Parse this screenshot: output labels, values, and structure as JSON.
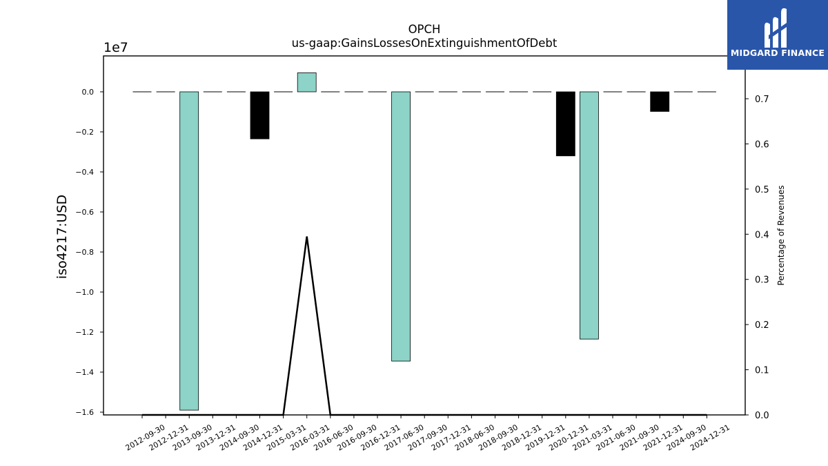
{
  "brand": {
    "name": "MIDGARD FINANCE",
    "logo_icon": "midgard-m-logo-icon",
    "background": "#2a56aa"
  },
  "chart_data": {
    "type": "bar",
    "title": "OPCH",
    "subtitle": "us-gaap:GainsLossesOnExtinguishmentOfDebt",
    "ylabel": "iso4217:USD",
    "y2label": "Percentage of Revenues",
    "y_offset_label": "1e7",
    "ylim": [
      -1.6,
      0.1
    ],
    "yticks": [
      "0.0",
      "−0.2",
      "−0.4",
      "−0.6",
      "−0.8",
      "−1.0",
      "−1.2",
      "−1.4",
      "−1.6"
    ],
    "y2lim": [
      0.0,
      0.7
    ],
    "y2ticks": [
      "0.0",
      "0.1",
      "0.2",
      "0.3",
      "0.4",
      "0.5",
      "0.6",
      "0.7"
    ],
    "categories": [
      "2012-09-30",
      "2012-12-31",
      "2013-09-30",
      "2013-12-31",
      "2014-09-30",
      "2014-12-31",
      "2015-03-31",
      "2016-03-31",
      "2016-06-30",
      "2016-09-30",
      "2016-12-31",
      "2017-06-30",
      "2017-09-30",
      "2017-12-31",
      "2018-06-30",
      "2018-09-30",
      "2018-12-31",
      "2019-12-31",
      "2020-12-31",
      "2021-03-31",
      "2021-06-30",
      "2021-09-30",
      "2021-12-31",
      "2024-09-30",
      "2024-12-31"
    ],
    "series": [
      {
        "values": [
          0,
          0,
          -1.59,
          0,
          0,
          -0.235,
          0,
          0.095,
          0,
          0,
          0,
          -1.345,
          0,
          0,
          0,
          0,
          0,
          0,
          -0.32,
          -1.235,
          0,
          0,
          -0.098,
          0,
          0
        ],
        "colors": {
          "positive": "#8dd3c7",
          "negative": "#000000"
        },
        "axis": "left",
        "type": "bar"
      },
      {
        "values": [
          0,
          0,
          0,
          0,
          0,
          0,
          0,
          0.395,
          0,
          0,
          0,
          0,
          0,
          0,
          0,
          0,
          0,
          0,
          0,
          0,
          0,
          0,
          0,
          0,
          0
        ],
        "color": "#000000",
        "axis": "right",
        "type": "line"
      }
    ],
    "bar_colors": [
      "black",
      "black",
      "#8dd3c7",
      "black",
      "black",
      "black",
      "black",
      "#8dd3c7",
      "black",
      "black",
      "black",
      "#8dd3c7",
      "black",
      "black",
      "black",
      "black",
      "black",
      "black",
      "black",
      "#8dd3c7",
      "black",
      "black",
      "black",
      "black",
      "black"
    ],
    "grid": false,
    "legend": "none"
  }
}
